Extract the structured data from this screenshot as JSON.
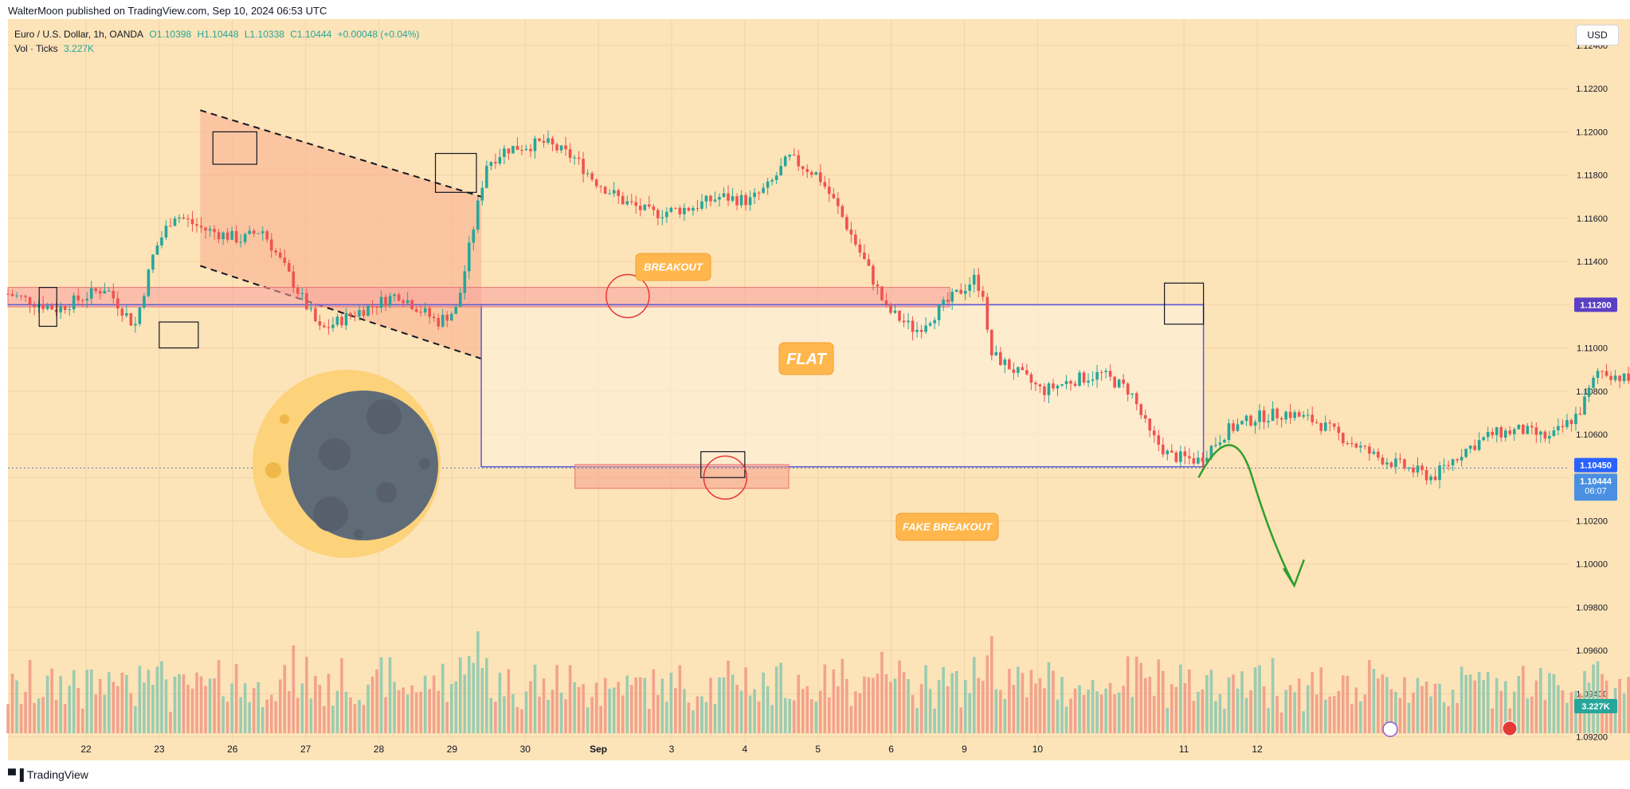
{
  "header": {
    "publisher_line": "WalterMoon published on TradingView.com, Sep 10, 2024 06:53 UTC"
  },
  "legend": {
    "symbol": "Euro / U.S. Dollar, 1h, OANDA",
    "open": "O1.10398",
    "high": "H1.10448",
    "low": "L1.10338",
    "close": "C1.10444",
    "change": "+0.00048 (+0.04%)",
    "volume_label": "Vol · Ticks",
    "volume_value": "3.227K"
  },
  "currency_button": "USD",
  "footer": {
    "brand": "TradingView"
  },
  "annotations": {
    "breakout": "BREAKOUT",
    "flat": "FLAT",
    "fake_breakout": "FAKE BREAKOUT"
  },
  "price_badges": {
    "level": "1.11200",
    "current": "1.10450",
    "last": "1.10444",
    "countdown": "06:07",
    "volume": "3.227K"
  },
  "colors": {
    "background": "#fde3b8",
    "up": "#26a69a",
    "down": "#ef5350",
    "flat_box": "#5b5bd6",
    "resistance_zone": "#f7a0a0",
    "arrow": "#2e9e2e"
  },
  "chart_data": {
    "type": "candlestick",
    "interval": "1h",
    "y_axis": {
      "ticks": [
        "1.12400",
        "1.12200",
        "1.12000",
        "1.11800",
        "1.11600",
        "1.11400",
        "1.11200",
        "1.11000",
        "1.10800",
        "1.10600",
        "1.10400",
        "1.10200",
        "1.10000",
        "1.09800",
        "1.09600",
        "1.09400",
        "1.09200"
      ],
      "range": [
        1.0918,
        1.1247
      ]
    },
    "x_axis": {
      "ticks": [
        "22",
        "23",
        "26",
        "27",
        "28",
        "29",
        "30",
        "Sep",
        "3",
        "4",
        "5",
        "6",
        "9",
        "10",
        "11",
        "12"
      ]
    },
    "levels": {
      "flat_top": 1.112,
      "flat_bottom": 1.1045,
      "resistance_zone": [
        1.1119,
        1.1128
      ],
      "fake_breakout_zone": [
        1.1035,
        1.1046
      ]
    },
    "price_path": [
      [
        0,
        1.1125
      ],
      [
        0.5,
        1.1118
      ],
      [
        1.0,
        1.1128
      ],
      [
        1.3,
        1.111
      ],
      [
        1.5,
        1.1145
      ],
      [
        1.7,
        1.1162
      ],
      [
        2.0,
        1.1155
      ],
      [
        2.4,
        1.115
      ],
      [
        2.6,
        1.1155
      ],
      [
        2.9,
        1.1132
      ],
      [
        3.2,
        1.1108
      ],
      [
        3.5,
        1.1115
      ],
      [
        4.0,
        1.1125
      ],
      [
        4.4,
        1.1112
      ],
      [
        4.6,
        1.1118
      ],
      [
        4.9,
        1.1185
      ],
      [
        5.1,
        1.1192
      ],
      [
        5.5,
        1.1195
      ],
      [
        5.8,
        1.1188
      ],
      [
        6.0,
        1.1178
      ],
      [
        6.3,
        1.1168
      ],
      [
        6.6,
        1.1162
      ],
      [
        7.0,
        1.1165
      ],
      [
        7.3,
        1.117
      ],
      [
        7.6,
        1.1168
      ],
      [
        7.8,
        1.1175
      ],
      [
        8.0,
        1.1188
      ],
      [
        8.3,
        1.118
      ],
      [
        8.5,
        1.1165
      ],
      [
        8.8,
        1.1138
      ],
      [
        9.0,
        1.1118
      ],
      [
        9.3,
        1.1108
      ],
      [
        9.6,
        1.112
      ],
      [
        9.9,
        1.1132
      ],
      [
        10.0,
        1.1125
      ],
      [
        10.05,
        1.1098
      ],
      [
        10.3,
        1.109
      ],
      [
        10.6,
        1.108
      ],
      [
        10.9,
        1.1085
      ],
      [
        11.2,
        1.1088
      ],
      [
        11.5,
        1.108
      ],
      [
        11.7,
        1.106
      ],
      [
        11.9,
        1.105
      ],
      [
        12.2,
        1.1048
      ],
      [
        12.5,
        1.1062
      ],
      [
        12.8,
        1.1068
      ],
      [
        13.1,
        1.107
      ],
      [
        13.4,
        1.1066
      ],
      [
        13.7,
        1.1058
      ],
      [
        14.0,
        1.105
      ],
      [
        14.3,
        1.1045
      ],
      [
        14.6,
        1.104
      ],
      [
        14.9,
        1.1052
      ],
      [
        15.2,
        1.106
      ],
      [
        15.5,
        1.1062
      ],
      [
        15.8,
        1.1058
      ],
      [
        16.1,
        1.107
      ],
      [
        16.3,
        1.109
      ],
      [
        16.6,
        1.1085
      ],
      [
        16.9,
        1.108
      ],
      [
        17.2,
        1.109
      ],
      [
        17.5,
        1.11
      ],
      [
        17.8,
        1.111
      ],
      [
        18.1,
        1.1105
      ],
      [
        18.4,
        1.1112
      ],
      [
        18.7,
        1.1118
      ],
      [
        19.0,
        1.1122
      ],
      [
        19.2,
        1.111
      ],
      [
        19.35,
        1.1085
      ],
      [
        19.6,
        1.1082
      ],
      [
        19.9,
        1.1088
      ],
      [
        20.2,
        1.108
      ],
      [
        20.5,
        1.1065
      ],
      [
        20.7,
        1.1048
      ],
      [
        21.0,
        1.1042
      ],
      [
        21.3,
        1.104
      ],
      [
        21.6,
        1.1036
      ],
      [
        21.9,
        1.1032
      ],
      [
        22.2,
        1.1044
      ]
    ],
    "projection": {
      "peak": 1.1055,
      "target": 1.099
    }
  }
}
